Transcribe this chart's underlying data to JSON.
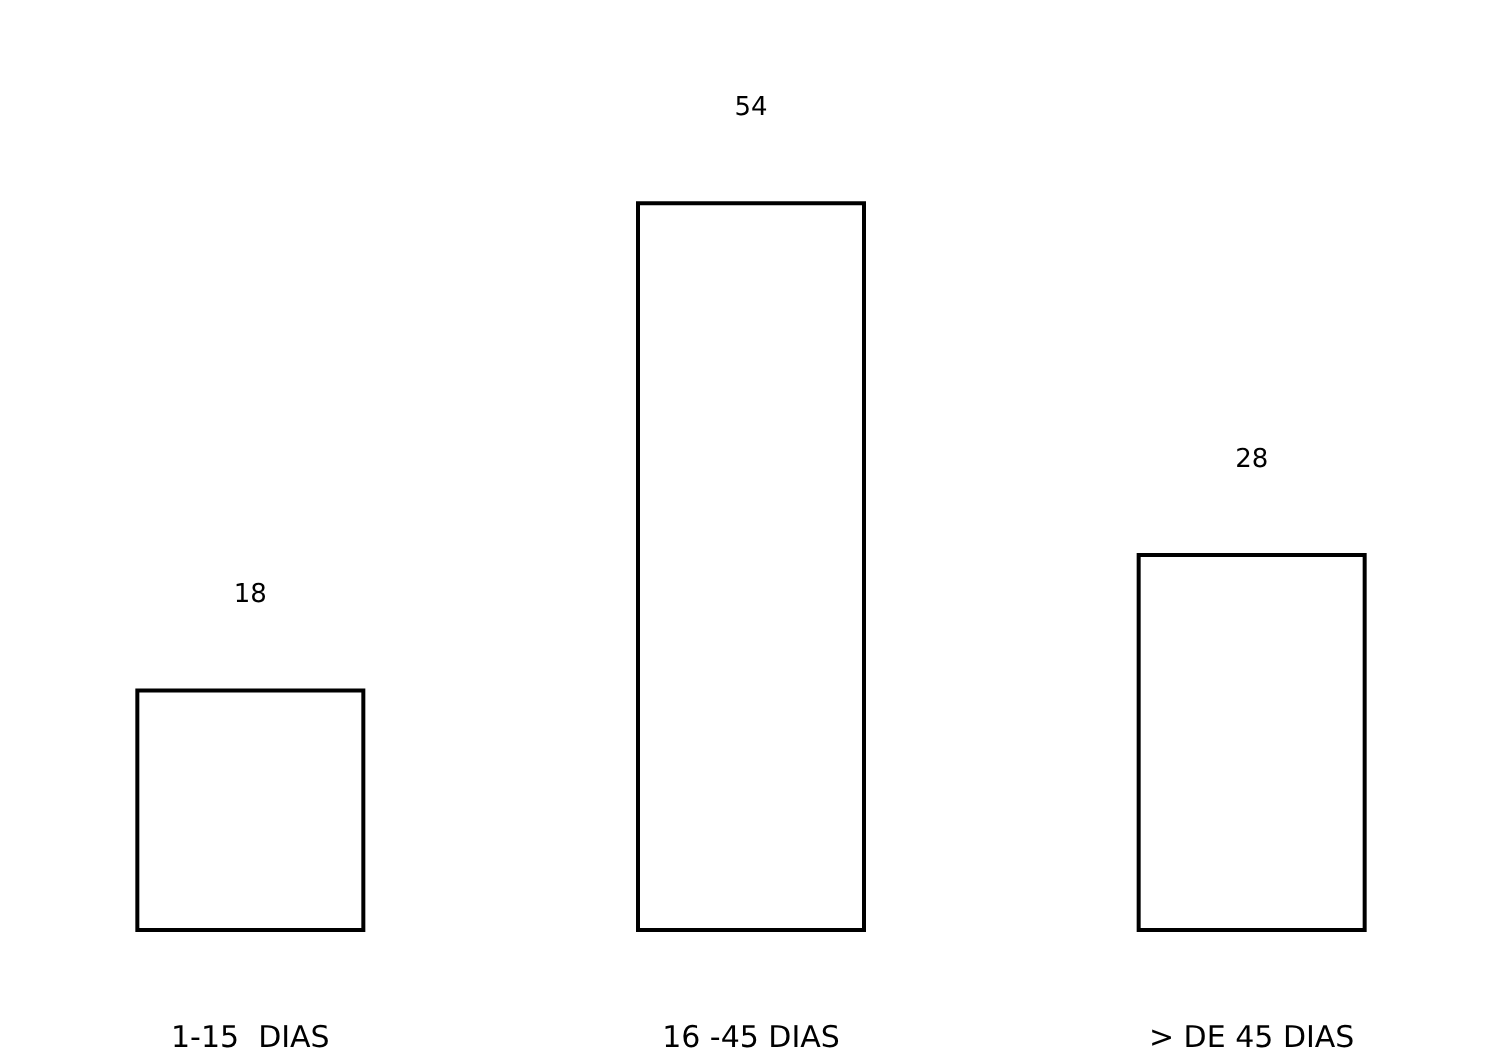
{
  "chart_data": {
    "type": "bar",
    "categories": [
      "1-15  DIAS",
      "16 -45 DIAS",
      "> DE 45 DIAS"
    ],
    "values": [
      18,
      54,
      28
    ],
    "color": "#ffffff",
    "data_labels": true
  }
}
